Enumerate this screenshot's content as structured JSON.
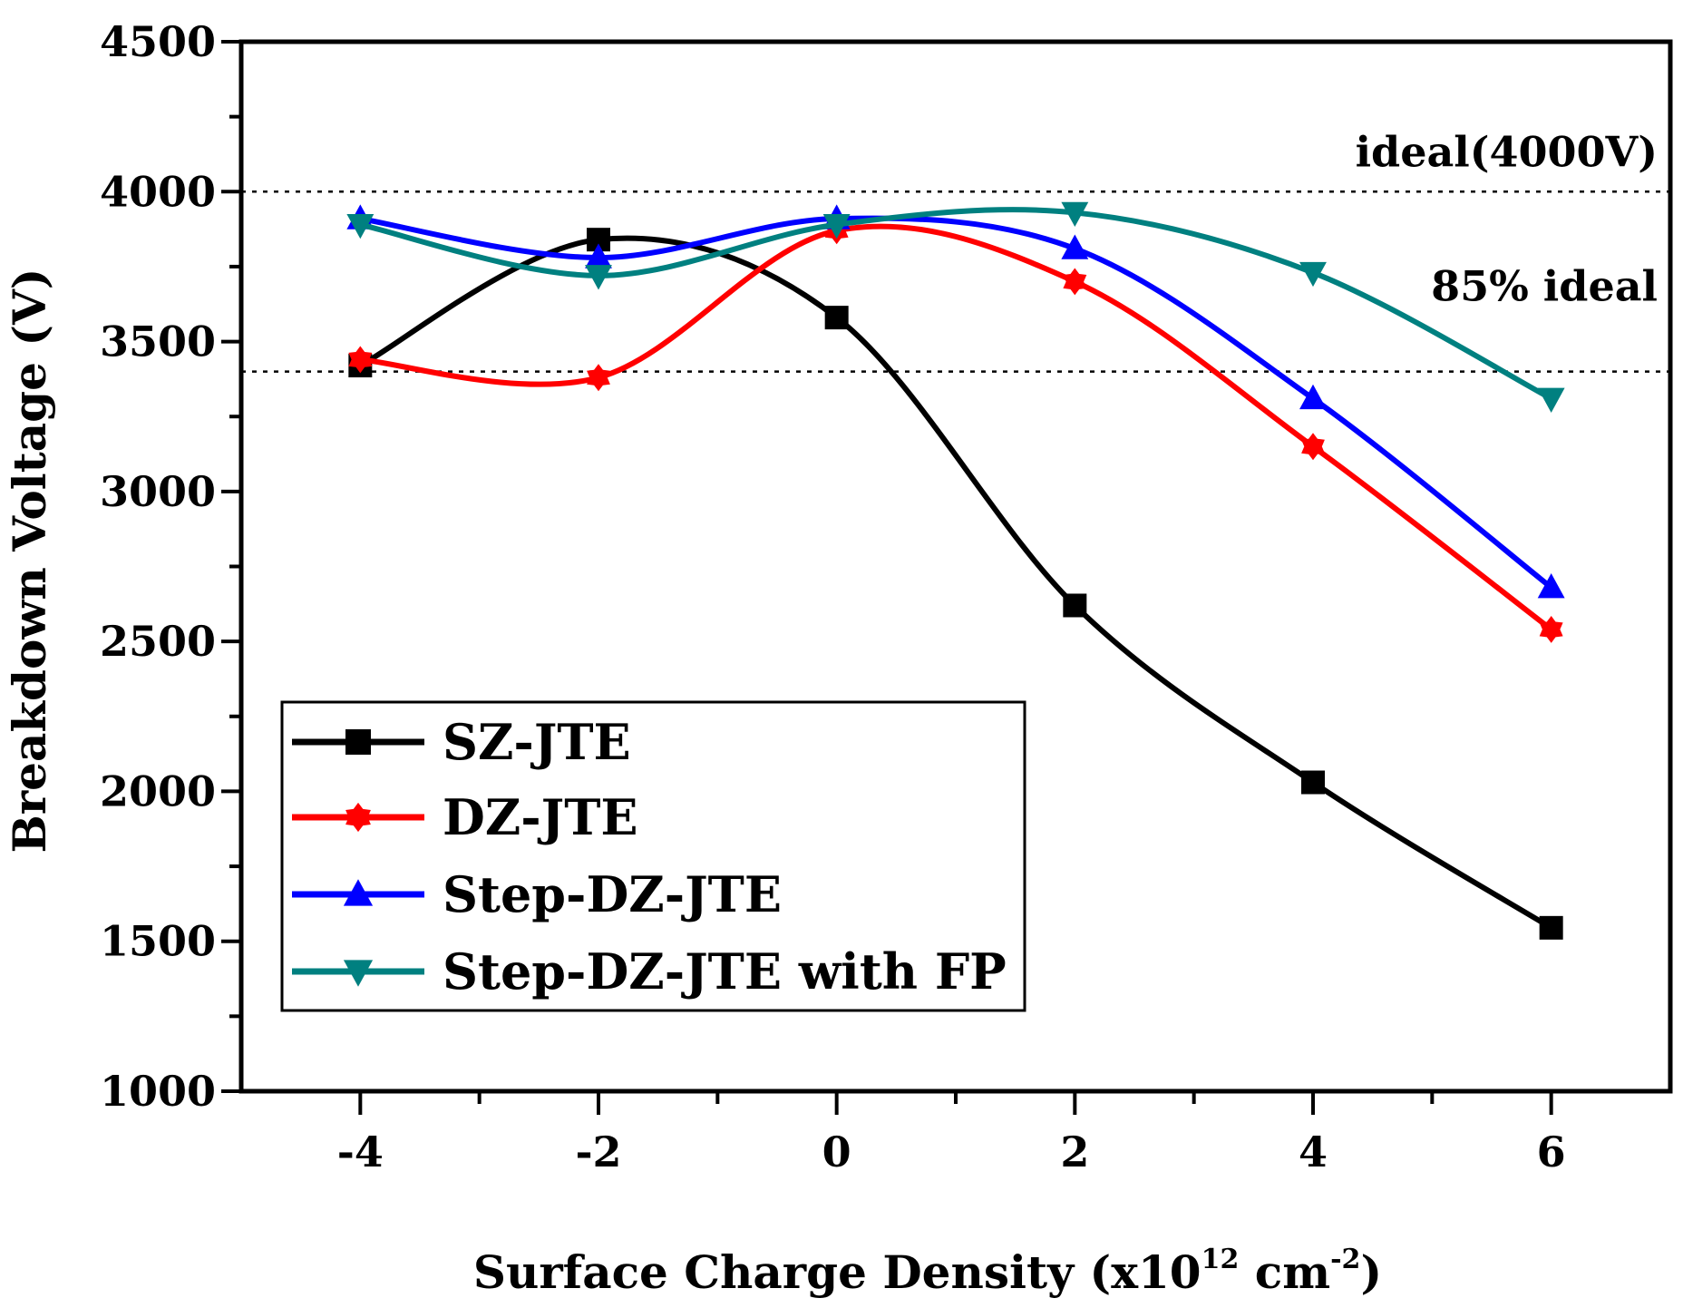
{
  "chart_data": {
    "type": "line",
    "xlabel": "Surface Charge Density (x10",
    "xlabel_sup1": "12",
    "xlabel_mid": " cm",
    "xlabel_sup2": "-2",
    "xlabel_end": ")",
    "ylabel": "Breakdown Voltage (V)",
    "xlim": [
      -5,
      7
    ],
    "ylim": [
      1000,
      4500
    ],
    "xticks": [
      -4,
      -2,
      0,
      2,
      4,
      6
    ],
    "yticks": [
      1000,
      1500,
      2000,
      2500,
      3000,
      3500,
      4000,
      4500
    ],
    "grid": false,
    "legend_position": "bottom-left",
    "reference_lines": [
      {
        "label": "ideal(4000V)",
        "y": 4000,
        "style": "dotted"
      },
      {
        "label": "85% ideal",
        "y": 3400,
        "style": "dotted"
      }
    ],
    "series": [
      {
        "name": "SZ-JTE",
        "color": "#000000",
        "marker": "square",
        "x": [
          -4,
          -2,
          0,
          2,
          4,
          6
        ],
        "values": [
          3420,
          3840,
          3580,
          2620,
          2030,
          1545
        ]
      },
      {
        "name": "DZ-JTE",
        "color": "#ff0000",
        "marker": "star",
        "x": [
          -4,
          -2,
          0,
          2,
          4,
          6
        ],
        "values": [
          3440,
          3380,
          3870,
          3700,
          3150,
          2540
        ]
      },
      {
        "name": "Step-DZ-JTE",
        "color": "#0000ff",
        "marker": "triangle-up",
        "x": [
          -4,
          -2,
          0,
          2,
          4,
          6
        ],
        "values": [
          3910,
          3780,
          3910,
          3810,
          3310,
          2680
        ]
      },
      {
        "name": "Step-DZ-JTE with FP",
        "color": "#008080",
        "marker": "triangle-down",
        "x": [
          -4,
          -2,
          0,
          2,
          4,
          6
        ],
        "values": [
          3890,
          3720,
          3890,
          3930,
          3730,
          3310
        ]
      }
    ]
  }
}
